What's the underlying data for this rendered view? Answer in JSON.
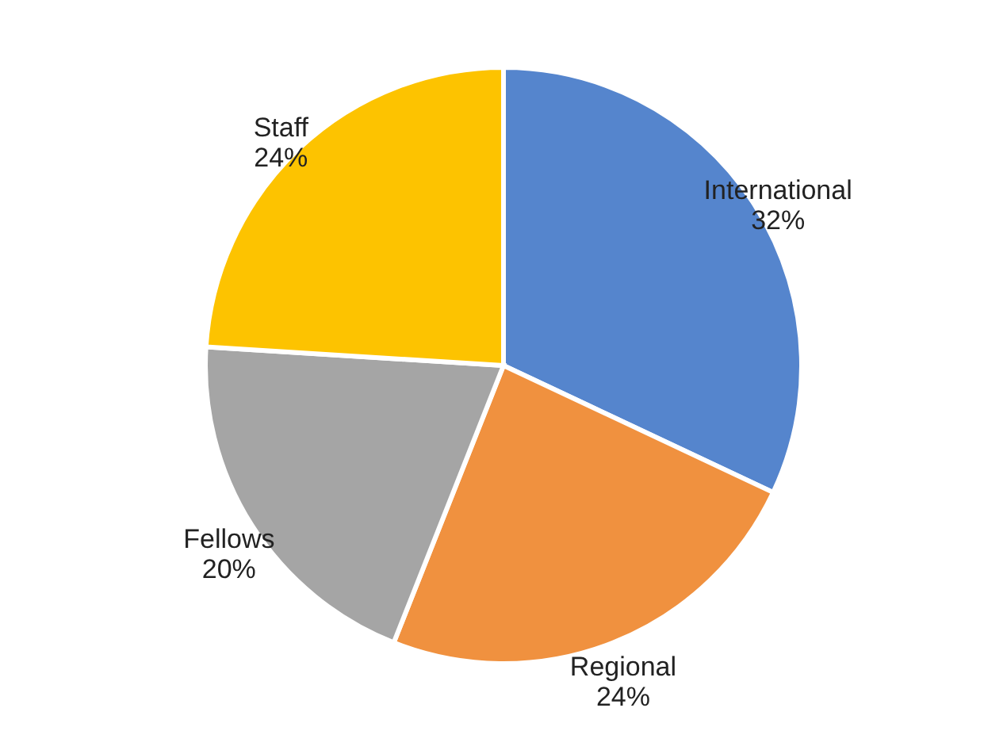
{
  "chart_data": {
    "type": "pie",
    "categories": [
      "International",
      "Regional",
      "Fellows",
      "Staff"
    ],
    "values": [
      32,
      24,
      20,
      24
    ],
    "value_labels": [
      "32%",
      "24%",
      "20%",
      "24%"
    ],
    "colors": [
      "#5585cd",
      "#f0913f",
      "#a5a5a5",
      "#fdc300"
    ]
  }
}
